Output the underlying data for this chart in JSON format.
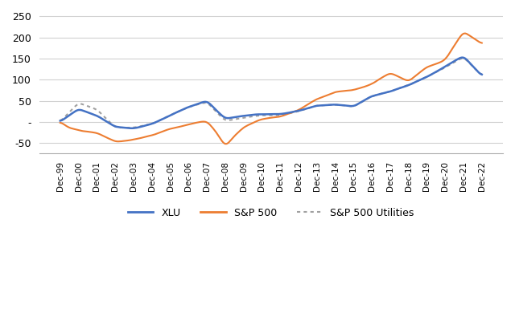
{
  "title": "",
  "xlabel": "",
  "ylabel": "",
  "ylim": [
    -75,
    260
  ],
  "yticks": [
    -50,
    0,
    50,
    100,
    150,
    200,
    250
  ],
  "ytick_labels": [
    "-50",
    "-",
    "50",
    "100",
    "150",
    "200",
    "250"
  ],
  "x_labels": [
    "Dec-99",
    "Dec-00",
    "Dec-01",
    "Dec-02",
    "Dec-03",
    "Dec-04",
    "Dec-05",
    "Dec-06",
    "Dec-07",
    "Dec-08",
    "Dec-09",
    "Dec-10",
    "Dec-11",
    "Dec-12",
    "Dec-13",
    "Dec-14",
    "Dec-15",
    "Dec-16",
    "Dec-17",
    "Dec-18",
    "Dec-19",
    "Dec-20",
    "Dec-21",
    "Dec-22"
  ],
  "xlu": [
    -5,
    25,
    15,
    -10,
    -15,
    -5,
    10,
    30,
    50,
    5,
    10,
    15,
    15,
    20,
    35,
    35,
    30,
    55,
    65,
    80,
    100,
    130,
    155,
    135,
    125,
    140,
    155,
    170,
    135,
    110
  ],
  "sp500": [
    -5,
    -15,
    -25,
    -30,
    -45,
    -40,
    -35,
    -25,
    -5,
    10,
    5,
    -10,
    -20,
    -25,
    -30,
    -55,
    -30,
    -10,
    5,
    20,
    30,
    35,
    45,
    60,
    75,
    80,
    80,
    95,
    95,
    80,
    95,
    130,
    140,
    155,
    165,
    185,
    215,
    205,
    175,
    190
  ],
  "sp500_util": [
    -5,
    10,
    20,
    5,
    -5,
    -15,
    -20,
    -15,
    -10,
    -15,
    -20,
    -10,
    10,
    30,
    50,
    40,
    25,
    30,
    40,
    55,
    70,
    85,
    90,
    100,
    110,
    125,
    140,
    145,
    130,
    110
  ],
  "xlu_color": "#4472C4",
  "sp500_color": "#ED7D31",
  "sp500_util_color": "#a0a0a0",
  "background_color": "#ffffff",
  "grid_color": "#d0d0d0",
  "legend_labels": [
    "XLU",
    "S&P 500",
    "S&P 500 Utilities"
  ]
}
